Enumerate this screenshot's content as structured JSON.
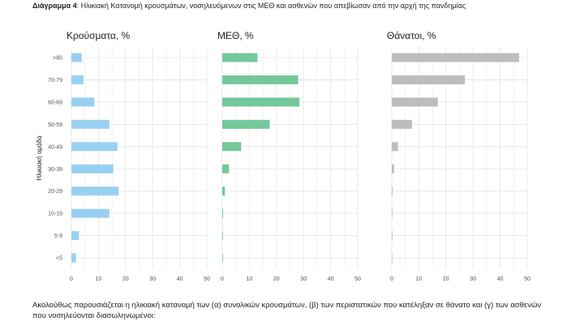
{
  "caption": {
    "label": "Διάγραμμα 4",
    "text": ": Ηλικιακή Κατανομή κρουσμάτων, νοσηλευόμενων στις ΜΕΘ και ασθενών που απεβίωσαν από την αρχή της πανδημίας"
  },
  "footer": {
    "text": "Ακολούθως παρουσιάζεται η ηλικιακή κατανομή των (α) συνολικών κρουσμάτων, (β) των περιστατικών που κατέληξαν σε θάνατο και (γ) των ασθενών που νοσηλεύονται διασωληνωμένοι:"
  },
  "chart_data": {
    "type": "bar",
    "orientation": "horizontal",
    "ylabel": "Ηλικιακή ομάδα",
    "categories": [
      ">80",
      "70-79",
      "60-69",
      "50-59",
      "40-49",
      "30-39",
      "20-29",
      "10-19",
      "5-9",
      "<5"
    ],
    "xlim": [
      0,
      50
    ],
    "xticks": [
      "0",
      "10",
      "20",
      "30",
      "40",
      "50"
    ],
    "grid": true,
    "panels": [
      {
        "title": "Κρούσματα, %",
        "color": "#99d0f2",
        "values": [
          3.8,
          4.5,
          8.5,
          14.0,
          17.0,
          15.5,
          17.5,
          14.0,
          2.8,
          1.7
        ]
      },
      {
        "title": "ΜΕΘ, %",
        "color": "#74c89a",
        "values": [
          13.0,
          28.0,
          28.5,
          17.5,
          7.0,
          2.5,
          1.0,
          0.3,
          0.2,
          0.2
        ]
      },
      {
        "title": "Θάνατοι, %",
        "color": "#bdbdbd",
        "values": [
          47.0,
          27.0,
          17.0,
          7.5,
          2.3,
          0.8,
          0.3,
          0.1,
          0.1,
          0.1
        ]
      }
    ]
  }
}
